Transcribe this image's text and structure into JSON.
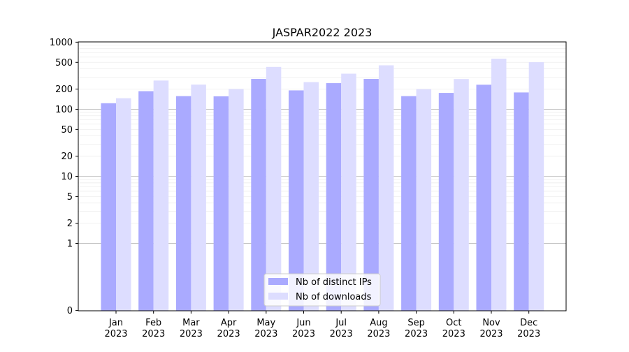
{
  "chart_data": {
    "type": "bar",
    "title": "JASPAR2022 2023",
    "categories": [
      "Jan\n2023",
      "Feb\n2023",
      "Mar\n2023",
      "Apr\n2023",
      "May\n2023",
      "Jun\n2023",
      "Jul\n2023",
      "Aug\n2023",
      "Sep\n2023",
      "Oct\n2023",
      "Nov\n2023",
      "Dec\n2023"
    ],
    "series": [
      {
        "name": "Nb of distinct IPs",
        "color": "#aaaaff",
        "values": [
          123,
          186,
          157,
          156,
          283,
          191,
          245,
          283,
          157,
          175,
          232,
          178
        ]
      },
      {
        "name": "Nb of downloads",
        "color": "#ddddff",
        "values": [
          146,
          268,
          233,
          200,
          428,
          254,
          339,
          452,
          199,
          282,
          568,
          503
        ]
      }
    ],
    "y_scale": "symlog (log above 1, linear 0–1)",
    "ylim": [
      0,
      1000
    ],
    "y_ticks": [
      0,
      1,
      2,
      5,
      10,
      20,
      50,
      100,
      200,
      500,
      1000
    ],
    "grid": true,
    "legend_location": "lower-center",
    "xlabel": "",
    "ylabel": ""
  }
}
